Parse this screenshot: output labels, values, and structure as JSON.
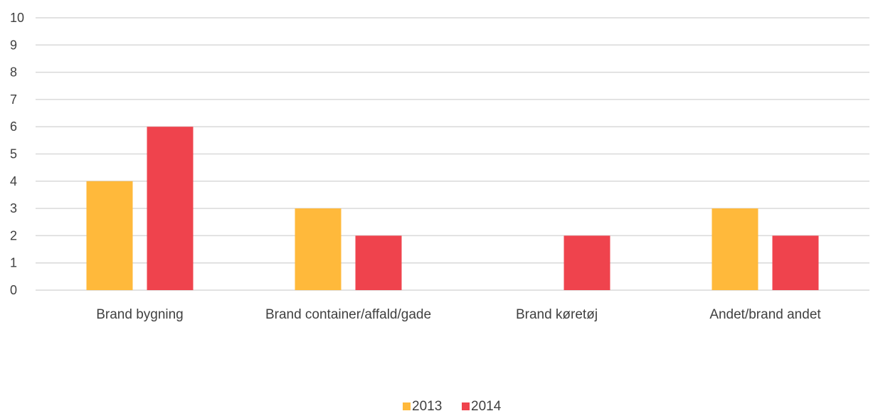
{
  "chart_data": {
    "type": "bar",
    "categories": [
      "Brand bygning",
      "Brand container/affald/gade",
      "Brand køretøj",
      "Andet/brand andet"
    ],
    "series": [
      {
        "name": "2013",
        "values": [
          4,
          3,
          0,
          3
        ],
        "color": "#FFB93B"
      },
      {
        "name": "2014",
        "values": [
          6,
          2,
          2,
          2
        ],
        "color": "#EF434D"
      }
    ],
    "yticks": [
      "0",
      "1",
      "2",
      "3",
      "4",
      "5",
      "6",
      "7",
      "8",
      "9",
      "10"
    ],
    "ylim": [
      0,
      10
    ],
    "grid": true,
    "gridColor": "#d9d9d9",
    "legend_position": "bottom-center"
  }
}
